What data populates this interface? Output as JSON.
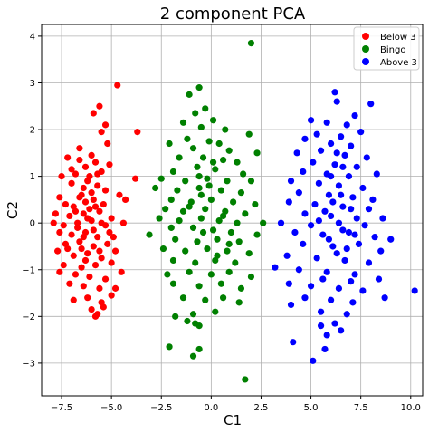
{
  "chart_data": {
    "type": "scatter",
    "title": "2 component PCA",
    "xlabel": "C1",
    "ylabel": "C2",
    "xlim": [
      -8.5,
      10.6
    ],
    "ylim": [
      -3.7,
      4.25
    ],
    "xticks": [
      -7.5,
      -5.0,
      -2.5,
      0.0,
      2.5,
      5.0,
      7.5,
      10.0
    ],
    "xtick_labels": [
      "−7.5",
      "−5.0",
      "−2.5",
      "0.0",
      "2.5",
      "5.0",
      "7.5",
      "10.0"
    ],
    "yticks": [
      -3,
      -2,
      -1,
      0,
      1,
      2,
      3,
      4
    ],
    "ytick_labels": [
      "−3",
      "−2",
      "−1",
      "0",
      "1",
      "2",
      "3",
      "4"
    ],
    "grid": true,
    "legend_position": "top-right",
    "series": [
      {
        "name": "Below 3",
        "color": "#ff0000",
        "points": [
          [
            -4.7,
            2.95
          ],
          [
            -5.6,
            2.5
          ],
          [
            -5.9,
            2.35
          ],
          [
            -5.3,
            2.1
          ],
          [
            -5.5,
            1.95
          ],
          [
            -3.7,
            1.95
          ],
          [
            -6.6,
            1.6
          ],
          [
            -5.2,
            1.7
          ],
          [
            -7.2,
            1.4
          ],
          [
            -6.0,
            1.45
          ],
          [
            -5.8,
            1.3
          ],
          [
            -6.3,
            1.2
          ],
          [
            -5.1,
            1.25
          ],
          [
            -7.5,
            1.0
          ],
          [
            -6.8,
            1.05
          ],
          [
            -5.5,
            1.1
          ],
          [
            -3.8,
            0.95
          ],
          [
            -7.0,
            0.85
          ],
          [
            -6.2,
            0.9
          ],
          [
            -5.7,
            0.8
          ],
          [
            -4.6,
            0.6
          ],
          [
            -7.6,
            0.55
          ],
          [
            -6.5,
            0.6
          ],
          [
            -5.9,
            0.5
          ],
          [
            -4.3,
            0.5
          ],
          [
            -7.3,
            0.4
          ],
          [
            -6.9,
            0.35
          ],
          [
            -6.1,
            0.3
          ],
          [
            -5.4,
            0.4
          ],
          [
            -7.8,
            0.2
          ],
          [
            -7.1,
            0.15
          ],
          [
            -6.4,
            0.2
          ],
          [
            -5.6,
            0.25
          ],
          [
            -5.0,
            0.1
          ],
          [
            -7.9,
            0.0
          ],
          [
            -7.4,
            -0.05
          ],
          [
            -6.7,
            0.0
          ],
          [
            -6.0,
            0.05
          ],
          [
            -5.3,
            -0.05
          ],
          [
            -4.4,
            0.0
          ],
          [
            -7.6,
            -0.2
          ],
          [
            -7.0,
            -0.25
          ],
          [
            -6.3,
            -0.2
          ],
          [
            -5.7,
            -0.3
          ],
          [
            -5.1,
            -0.2
          ],
          [
            -7.3,
            -0.45
          ],
          [
            -6.6,
            -0.4
          ],
          [
            -5.9,
            -0.5
          ],
          [
            -5.2,
            -0.45
          ],
          [
            -7.7,
            -0.6
          ],
          [
            -6.9,
            -0.7
          ],
          [
            -6.2,
            -0.65
          ],
          [
            -5.5,
            -0.75
          ],
          [
            -4.8,
            -0.6
          ],
          [
            -7.4,
            -0.9
          ],
          [
            -6.5,
            -0.95
          ],
          [
            -5.8,
            -0.9
          ],
          [
            -5.0,
            -0.85
          ],
          [
            -7.6,
            -1.05
          ],
          [
            -6.8,
            -1.1
          ],
          [
            -6.1,
            -1.15
          ],
          [
            -5.3,
            -1.2
          ],
          [
            -4.5,
            -1.05
          ],
          [
            -7.1,
            -1.3
          ],
          [
            -6.4,
            -1.35
          ],
          [
            -5.6,
            -1.4
          ],
          [
            -4.8,
            -1.4
          ],
          [
            -6.9,
            -1.65
          ],
          [
            -6.2,
            -1.6
          ],
          [
            -5.5,
            -1.7
          ],
          [
            -5.0,
            -1.55
          ],
          [
            -6.0,
            -1.85
          ],
          [
            -5.7,
            -1.95
          ],
          [
            -5.4,
            -1.8
          ],
          [
            -5.8,
            -2.0
          ],
          [
            -6.6,
            1.35
          ],
          [
            -6.4,
            0.75
          ],
          [
            -6.1,
            1.0
          ],
          [
            -6.7,
            -0.1
          ],
          [
            -6.3,
            0.45
          ],
          [
            -5.9,
            -0.15
          ],
          [
            -6.5,
            -0.55
          ],
          [
            -6.0,
            0.65
          ],
          [
            -5.6,
            -0.6
          ],
          [
            -6.2,
            0.1
          ],
          [
            -6.8,
            0.25
          ],
          [
            -5.5,
            0.0
          ],
          [
            -6.4,
            -0.3
          ],
          [
            -5.8,
            0.35
          ],
          [
            -7.2,
            -0.55
          ],
          [
            -6.6,
            0.55
          ],
          [
            -5.3,
            0.7
          ],
          [
            -7.0,
            1.15
          ],
          [
            -6.3,
            -0.8
          ],
          [
            -5.7,
            1.05
          ],
          [
            -4.9,
            -0.3
          ]
        ]
      },
      {
        "name": "Bingo",
        "color": "#008000",
        "points": [
          [
            2.0,
            3.85
          ],
          [
            -0.6,
            2.9
          ],
          [
            -1.1,
            2.75
          ],
          [
            -0.3,
            2.45
          ],
          [
            -0.8,
            2.35
          ],
          [
            0.1,
            2.2
          ],
          [
            -1.4,
            2.15
          ],
          [
            -0.5,
            2.05
          ],
          [
            0.7,
            2.0
          ],
          [
            1.9,
            1.9
          ],
          [
            -1.2,
            1.8
          ],
          [
            -0.1,
            1.75
          ],
          [
            0.4,
            1.7
          ],
          [
            -2.1,
            1.7
          ],
          [
            -0.9,
            1.6
          ],
          [
            0.9,
            1.55
          ],
          [
            2.3,
            1.5
          ],
          [
            -1.6,
            1.4
          ],
          [
            -0.4,
            1.4
          ],
          [
            0.6,
            1.35
          ],
          [
            1.3,
            1.3
          ],
          [
            -1.9,
            1.1
          ],
          [
            -0.7,
            1.2
          ],
          [
            0.2,
            1.15
          ],
          [
            1.6,
            1.05
          ],
          [
            -2.5,
            0.95
          ],
          [
            -1.3,
            0.9
          ],
          [
            -0.2,
            0.95
          ],
          [
            0.8,
            0.9
          ],
          [
            2.0,
            0.9
          ],
          [
            -2.8,
            0.75
          ],
          [
            -1.7,
            0.7
          ],
          [
            -0.6,
            0.75
          ],
          [
            0.5,
            0.7
          ],
          [
            1.5,
            0.65
          ],
          [
            -2.0,
            0.5
          ],
          [
            -1.0,
            0.45
          ],
          [
            0.0,
            0.5
          ],
          [
            1.1,
            0.45
          ],
          [
            2.2,
            0.4
          ],
          [
            -2.3,
            0.3
          ],
          [
            -1.4,
            0.25
          ],
          [
            -0.3,
            0.3
          ],
          [
            0.7,
            0.25
          ],
          [
            1.7,
            0.2
          ],
          [
            -2.6,
            0.1
          ],
          [
            -1.6,
            0.05
          ],
          [
            -0.5,
            0.1
          ],
          [
            0.4,
            0.05
          ],
          [
            1.3,
            0.0
          ],
          [
            2.6,
            0.0
          ],
          [
            -3.1,
            -0.25
          ],
          [
            -2.0,
            -0.1
          ],
          [
            -0.9,
            -0.1
          ],
          [
            0.1,
            -0.15
          ],
          [
            1.0,
            -0.2
          ],
          [
            2.3,
            -0.25
          ],
          [
            -1.8,
            -0.35
          ],
          [
            -0.7,
            -0.4
          ],
          [
            0.3,
            -0.35
          ],
          [
            1.4,
            -0.4
          ],
          [
            -2.4,
            -0.55
          ],
          [
            -1.3,
            -0.6
          ],
          [
            -0.2,
            -0.55
          ],
          [
            0.8,
            -0.6
          ],
          [
            1.9,
            -0.65
          ],
          [
            -1.9,
            -0.8
          ],
          [
            -0.8,
            -0.85
          ],
          [
            0.2,
            -0.8
          ],
          [
            1.2,
            -0.85
          ],
          [
            -2.2,
            -1.1
          ],
          [
            -1.1,
            -1.05
          ],
          [
            0.0,
            -1.1
          ],
          [
            0.9,
            -1.05
          ],
          [
            2.0,
            -1.15
          ],
          [
            -1.9,
            -1.3
          ],
          [
            -0.6,
            -1.35
          ],
          [
            0.5,
            -1.3
          ],
          [
            1.5,
            -1.4
          ],
          [
            -1.4,
            -1.6
          ],
          [
            -0.3,
            -1.65
          ],
          [
            0.6,
            -1.6
          ],
          [
            1.4,
            -1.7
          ],
          [
            -1.8,
            -2.0
          ],
          [
            -0.9,
            -1.95
          ],
          [
            0.2,
            -1.9
          ],
          [
            -1.2,
            -2.1
          ],
          [
            -0.6,
            -2.2
          ],
          [
            -0.8,
            -2.15
          ],
          [
            -2.1,
            -2.65
          ],
          [
            -0.6,
            -2.7
          ],
          [
            -0.9,
            -2.85
          ],
          [
            1.7,
            -3.35
          ],
          [
            -0.5,
            0.6
          ],
          [
            -0.1,
            0.8
          ],
          [
            0.3,
            -0.7
          ],
          [
            -0.4,
            -0.2
          ],
          [
            0.6,
            0.15
          ],
          [
            -1.1,
            0.35
          ],
          [
            0.9,
            -0.45
          ],
          [
            -0.6,
            1.0
          ],
          [
            0.1,
            1.3
          ]
        ]
      },
      {
        "name": "Above 3",
        "color": "#0000ff",
        "points": [
          [
            6.2,
            2.8
          ],
          [
            6.3,
            2.6
          ],
          [
            8.0,
            2.55
          ],
          [
            7.2,
            2.3
          ],
          [
            5.0,
            2.2
          ],
          [
            5.8,
            2.15
          ],
          [
            6.8,
            2.1
          ],
          [
            7.5,
            1.95
          ],
          [
            5.3,
            1.9
          ],
          [
            6.5,
            1.85
          ],
          [
            4.7,
            1.8
          ],
          [
            6.0,
            1.7
          ],
          [
            7.0,
            1.65
          ],
          [
            5.5,
            1.55
          ],
          [
            4.3,
            1.5
          ],
          [
            6.7,
            1.45
          ],
          [
            7.8,
            1.4
          ],
          [
            5.1,
            1.3
          ],
          [
            6.2,
            1.25
          ],
          [
            7.3,
            1.2
          ],
          [
            4.6,
            1.1
          ],
          [
            5.8,
            1.05
          ],
          [
            6.9,
            1.0
          ],
          [
            8.3,
            1.05
          ],
          [
            4.0,
            0.9
          ],
          [
            5.4,
            0.85
          ],
          [
            6.4,
            0.8
          ],
          [
            7.6,
            0.75
          ],
          [
            4.4,
            0.65
          ],
          [
            5.9,
            0.6
          ],
          [
            7.1,
            0.55
          ],
          [
            8.1,
            0.5
          ],
          [
            3.9,
            0.45
          ],
          [
            5.2,
            0.4
          ],
          [
            6.6,
            0.35
          ],
          [
            7.9,
            0.3
          ],
          [
            4.7,
            0.2
          ],
          [
            6.0,
            0.15
          ],
          [
            7.3,
            0.1
          ],
          [
            8.6,
            0.1
          ],
          [
            3.5,
            0.0
          ],
          [
            5.0,
            -0.05
          ],
          [
            6.4,
            0.0
          ],
          [
            7.7,
            -0.05
          ],
          [
            4.2,
            -0.2
          ],
          [
            5.6,
            -0.25
          ],
          [
            6.9,
            -0.2
          ],
          [
            8.2,
            -0.3
          ],
          [
            9.0,
            -0.35
          ],
          [
            3.2,
            -0.95
          ],
          [
            4.6,
            -0.45
          ],
          [
            6.1,
            -0.5
          ],
          [
            7.4,
            -0.45
          ],
          [
            8.5,
            -0.6
          ],
          [
            3.8,
            -0.7
          ],
          [
            5.3,
            -0.75
          ],
          [
            6.7,
            -0.8
          ],
          [
            7.9,
            -0.85
          ],
          [
            4.4,
            -1.0
          ],
          [
            5.8,
            -1.05
          ],
          [
            7.2,
            -1.1
          ],
          [
            8.4,
            -1.2
          ],
          [
            3.9,
            -1.3
          ],
          [
            5.0,
            -1.35
          ],
          [
            6.4,
            -1.4
          ],
          [
            7.6,
            -1.45
          ],
          [
            8.7,
            -1.6
          ],
          [
            4.7,
            -1.6
          ],
          [
            6.0,
            -1.65
          ],
          [
            7.1,
            -1.7
          ],
          [
            4.0,
            -1.75
          ],
          [
            5.5,
            -1.9
          ],
          [
            6.8,
            -1.95
          ],
          [
            6.2,
            -2.15
          ],
          [
            5.5,
            -2.2
          ],
          [
            6.5,
            -2.3
          ],
          [
            5.8,
            -2.4
          ],
          [
            4.1,
            -2.55
          ],
          [
            5.7,
            -2.7
          ],
          [
            5.1,
            -2.95
          ],
          [
            10.2,
            -1.45
          ],
          [
            6.1,
            0.45
          ],
          [
            6.6,
            -0.15
          ],
          [
            5.7,
            0.25
          ],
          [
            6.3,
            -0.65
          ],
          [
            7.0,
            0.3
          ],
          [
            5.9,
            -0.35
          ],
          [
            6.5,
            0.6
          ],
          [
            6.8,
            -0.55
          ],
          [
            5.4,
            0.05
          ],
          [
            7.2,
            -0.25
          ],
          [
            6.0,
            1.0
          ],
          [
            6.6,
            1.2
          ],
          [
            5.6,
            -1.2
          ],
          [
            7.0,
            -1.25
          ],
          [
            6.3,
            1.5
          ]
        ]
      }
    ]
  }
}
